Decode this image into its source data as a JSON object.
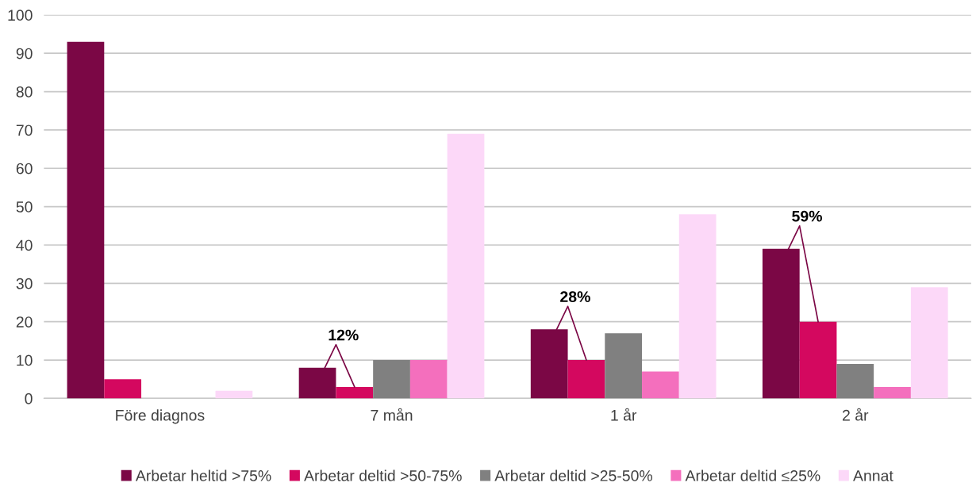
{
  "chart_data": {
    "type": "bar",
    "categories": [
      "Före diagnos",
      "7 mån",
      "1 år",
      "2 år"
    ],
    "series": [
      {
        "name": "Arbetar heltid >75%",
        "color": "#7b0745",
        "values": [
          93,
          8,
          18,
          39
        ]
      },
      {
        "name": "Arbetar deltid >50-75%",
        "color": "#d4085f",
        "values": [
          5,
          3,
          10,
          20
        ]
      },
      {
        "name": "Arbetar deltid >25-50%",
        "color": "#808080",
        "values": [
          0,
          10,
          17,
          9
        ]
      },
      {
        "name": "Arbetar deltid ≤25%",
        "color": "#f46fbd",
        "values": [
          0,
          10,
          7,
          3
        ]
      },
      {
        "name": "Annat",
        "color": "#fcd8f8",
        "values": [
          2,
          69,
          48,
          29
        ]
      }
    ],
    "ylim": [
      0,
      100
    ],
    "yticks": [
      0,
      10,
      20,
      30,
      40,
      50,
      60,
      70,
      80,
      90,
      100
    ],
    "grid": "y",
    "legend": "bottom",
    "annotations": [
      "12%",
      "28%",
      "59%"
    ]
  }
}
